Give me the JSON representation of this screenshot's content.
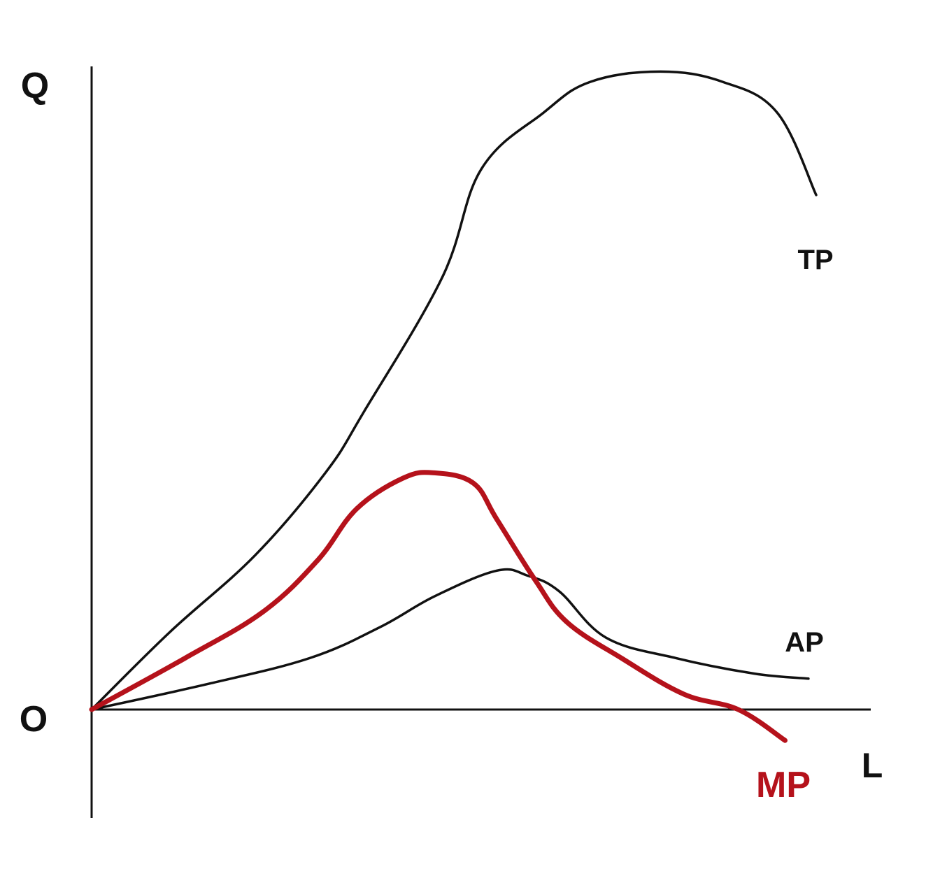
{
  "chart_data": {
    "type": "line",
    "title": "",
    "xlabel": "L",
    "ylabel": "Q",
    "origin_label": "O",
    "grid": false,
    "xlim": [
      0,
      10
    ],
    "ylim": [
      -1.4,
      12.5
    ],
    "colors": {
      "TP": "#111111",
      "AP": "#111111",
      "MP": "#b5121b"
    },
    "series": [
      {
        "name": "TP",
        "color": "#111111",
        "x": [
          0,
          1.0,
          2.1,
          3.0,
          3.5,
          4.5,
          5.0,
          5.8,
          6.4,
          7.3,
          8.1,
          8.8,
          9.3
        ],
        "y": [
          0,
          1.5,
          3.0,
          4.6,
          5.8,
          8.4,
          10.5,
          11.6,
          12.2,
          12.4,
          12.2,
          11.6,
          10.0
        ]
      },
      {
        "name": "AP",
        "color": "#111111",
        "x": [
          0,
          1.5,
          2.8,
          3.7,
          4.4,
          5.2,
          5.6,
          6.0,
          6.6,
          7.5,
          8.5,
          9.2
        ],
        "y": [
          0,
          0.5,
          1.0,
          1.6,
          2.2,
          2.7,
          2.6,
          2.3,
          1.4,
          1.0,
          0.7,
          0.6
        ]
      },
      {
        "name": "MP",
        "color": "#b5121b",
        "x": [
          0,
          1.2,
          2.2,
          2.9,
          3.4,
          4.0,
          4.4,
          4.9,
          5.2,
          5.7,
          6.1,
          6.8,
          7.6,
          8.3,
          8.9
        ],
        "y": [
          0,
          1.0,
          1.9,
          2.9,
          3.9,
          4.5,
          4.6,
          4.4,
          3.7,
          2.5,
          1.7,
          1.0,
          0.3,
          0.0,
          -0.6
        ]
      }
    ],
    "annotations": [
      {
        "text": "TP",
        "color": "#111111"
      },
      {
        "text": "AP",
        "color": "#111111"
      },
      {
        "text": "MP",
        "color": "#b5121b"
      }
    ]
  }
}
